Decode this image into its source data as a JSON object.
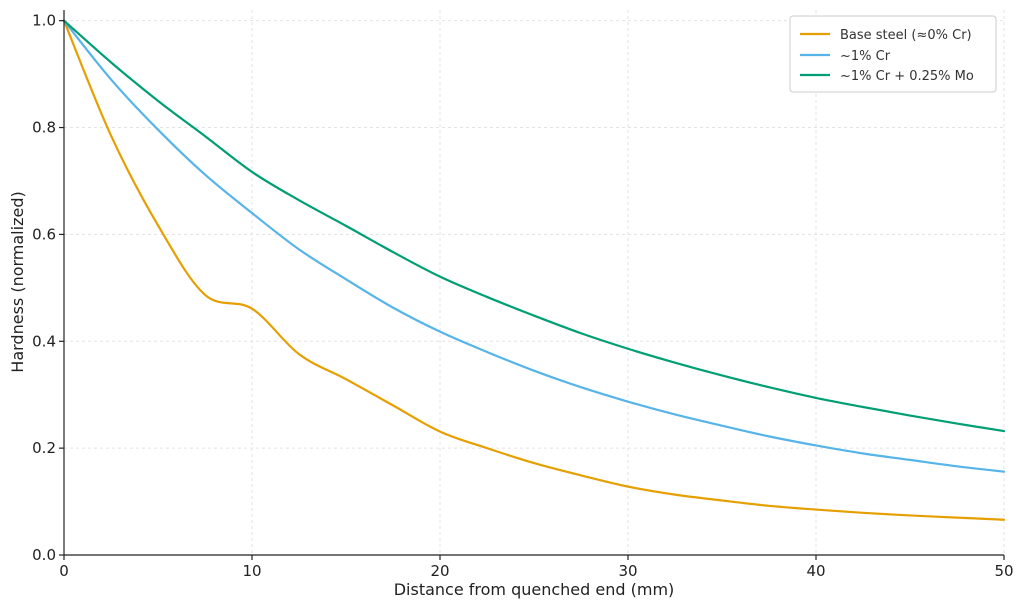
{
  "chart_data": {
    "type": "line",
    "title": "",
    "xlabel": "Distance from quenched end (mm)",
    "ylabel": "Hardness (normalized)",
    "xlim": [
      0,
      50
    ],
    "ylim": [
      0,
      1.02
    ],
    "xticks": [
      0,
      10,
      20,
      30,
      40,
      50
    ],
    "xtick_labels": [
      "0",
      "10",
      "20",
      "30",
      "40",
      "50"
    ],
    "yticks": [
      0.0,
      0.2,
      0.4,
      0.6,
      0.8,
      1.0
    ],
    "ytick_labels": [
      "0.0",
      "0.2",
      "0.4",
      "0.6",
      "0.8",
      "1.0"
    ],
    "grid": true,
    "legend_position": "top-right",
    "x": [
      0,
      2.5,
      5,
      7.5,
      10,
      12.5,
      15,
      17.5,
      20,
      22.5,
      25,
      27.5,
      30,
      32.5,
      35,
      37.5,
      40,
      42.5,
      45,
      47.5,
      50
    ],
    "series": [
      {
        "name": "Base steel (≈0% Cr)",
        "color": "#E69F00",
        "values": [
          1.0,
          0.785,
          0.617,
          0.487,
          0.461,
          0.376,
          0.329,
          0.28,
          0.231,
          0.2,
          0.172,
          0.149,
          0.128,
          0.113,
          0.102,
          0.092,
          0.085,
          0.079,
          0.074,
          0.07,
          0.066
        ]
      },
      {
        "name": "~1% Cr",
        "color": "#56B4E9",
        "values": [
          1.0,
          0.89,
          0.796,
          0.712,
          0.64,
          0.572,
          0.516,
          0.463,
          0.418,
          0.38,
          0.345,
          0.314,
          0.287,
          0.263,
          0.242,
          0.222,
          0.205,
          0.19,
          0.178,
          0.166,
          0.156
        ]
      },
      {
        "name": "~1% Cr + 0.25% Mo",
        "color": "#009E73",
        "values": [
          1.0,
          0.922,
          0.85,
          0.784,
          0.717,
          0.664,
          0.616,
          0.567,
          0.521,
          0.483,
          0.448,
          0.415,
          0.386,
          0.36,
          0.336,
          0.314,
          0.294,
          0.277,
          0.261,
          0.246,
          0.232
        ]
      }
    ]
  }
}
